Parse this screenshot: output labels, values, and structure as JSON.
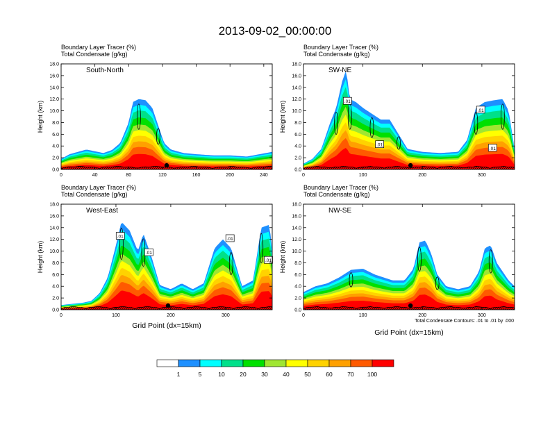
{
  "title": "2013-09-02_00:00:00",
  "panel_subtitle_1": "Boundary Layer Tracer   (%)",
  "panel_subtitle_2": "Total Condensate   (g/kg)",
  "x_axis_label": "Grid Point (dx=15km)",
  "contour_note": "Total Condensate Contours: .01 to .01 by .000",
  "palette": [
    "#ffffff",
    "#1e90ff",
    "#00ffff",
    "#00e08a",
    "#00e000",
    "#a0e632",
    "#ffff00",
    "#ffd200",
    "#ffa000",
    "#ff5a00",
    "#ff0000"
  ],
  "colorbar": {
    "labels": [
      "1",
      "5",
      "10",
      "20",
      "30",
      "40",
      "50",
      "60",
      "70",
      "100"
    ]
  },
  "chart_data": [
    {
      "type": "heatmap",
      "name": "South-North",
      "ylabel": "Height (km)",
      "xlabel": "",
      "ylim": [
        0,
        18
      ],
      "yticks": [
        "0.0",
        "2.0",
        "4.0",
        "6.0",
        "8.0",
        "10.0",
        "12.0",
        "14.0",
        "16.0",
        "18.0"
      ],
      "xlim": [
        0,
        250
      ],
      "xticks": [
        0,
        40,
        80,
        120,
        160,
        200,
        240
      ],
      "marker_x": 125,
      "profile": [
        [
          0,
          1.8
        ],
        [
          10,
          2.6
        ],
        [
          20,
          3.0
        ],
        [
          30,
          3.4
        ],
        [
          40,
          3.1
        ],
        [
          50,
          2.8
        ],
        [
          60,
          3.3
        ],
        [
          70,
          4.5
        ],
        [
          80,
          8.0
        ],
        [
          85,
          11.5
        ],
        [
          92,
          12.0
        ],
        [
          100,
          11.8
        ],
        [
          108,
          10.5
        ],
        [
          115,
          7.5
        ],
        [
          122,
          4.5
        ],
        [
          130,
          3.4
        ],
        [
          145,
          2.8
        ],
        [
          160,
          2.6
        ],
        [
          180,
          2.4
        ],
        [
          200,
          2.4
        ],
        [
          220,
          2.2
        ],
        [
          235,
          2.6
        ],
        [
          250,
          3.0
        ]
      ],
      "box_labels": []
    },
    {
      "type": "heatmap",
      "name": "SW-NE",
      "ylabel": "Height (km)",
      "xlabel": "",
      "ylim": [
        0,
        18
      ],
      "yticks": [
        "0.0",
        "2.0",
        "4.0",
        "6.0",
        "8.0",
        "10.0",
        "12.0",
        "14.0",
        "16.0",
        "18.0"
      ],
      "xlim": [
        0,
        355
      ],
      "xticks": [
        0,
        100,
        200,
        300
      ],
      "marker_x": 180,
      "profile": [
        [
          0,
          1.0
        ],
        [
          15,
          1.8
        ],
        [
          30,
          3.5
        ],
        [
          45,
          8.0
        ],
        [
          55,
          10.5
        ],
        [
          65,
          15.0
        ],
        [
          72,
          17.0
        ],
        [
          78,
          12.0
        ],
        [
          88,
          11.5
        ],
        [
          100,
          10.5
        ],
        [
          115,
          9.5
        ],
        [
          130,
          8.5
        ],
        [
          145,
          8.5
        ],
        [
          160,
          6.0
        ],
        [
          175,
          3.5
        ],
        [
          200,
          3.0
        ],
        [
          230,
          2.8
        ],
        [
          260,
          3.0
        ],
        [
          275,
          5.0
        ],
        [
          290,
          10.5
        ],
        [
          305,
          11.5
        ],
        [
          320,
          11.8
        ],
        [
          335,
          12.0
        ],
        [
          345,
          10.0
        ],
        [
          355,
          3.5
        ]
      ],
      "box_labels": [
        {
          "text": ".01",
          "x": 74,
          "y": 11.7
        },
        {
          "text": ".01",
          "x": 128,
          "y": 4.3
        },
        {
          "text": ".01",
          "x": 298,
          "y": 10.2
        },
        {
          "text": ".01",
          "x": 318,
          "y": 3.7
        }
      ]
    },
    {
      "type": "heatmap",
      "name": "West-East",
      "ylabel": "Height (km)",
      "xlabel": "Grid Point (dx=15km)",
      "ylim": [
        0,
        18
      ],
      "yticks": [
        "0.0",
        "2.0",
        "4.0",
        "6.0",
        "8.0",
        "10.0",
        "12.0",
        "14.0",
        "16.0",
        "18.0"
      ],
      "xlim": [
        0,
        385
      ],
      "xticks": [
        0,
        100,
        200,
        300
      ],
      "marker_x": 195,
      "profile": [
        [
          0,
          0.8
        ],
        [
          20,
          1.0
        ],
        [
          40,
          1.2
        ],
        [
          55,
          1.5
        ],
        [
          70,
          2.8
        ],
        [
          85,
          5.5
        ],
        [
          100,
          11.0
        ],
        [
          110,
          15.0
        ],
        [
          125,
          13.5
        ],
        [
          140,
          10.0
        ],
        [
          150,
          13.0
        ],
        [
          165,
          9.0
        ],
        [
          180,
          4.2
        ],
        [
          200,
          3.5
        ],
        [
          220,
          4.5
        ],
        [
          240,
          3.5
        ],
        [
          260,
          4.5
        ],
        [
          280,
          10.5
        ],
        [
          295,
          12.0
        ],
        [
          310,
          10.5
        ],
        [
          330,
          4.0
        ],
        [
          350,
          5.0
        ],
        [
          365,
          14.0
        ],
        [
          380,
          14.5
        ],
        [
          385,
          10.0
        ]
      ],
      "box_labels": [
        {
          "text": ".01",
          "x": 108,
          "y": 12.6
        },
        {
          "text": ".01",
          "x": 160,
          "y": 9.8
        },
        {
          "text": ".01",
          "x": 308,
          "y": 12.2
        },
        {
          "text": ".01",
          "x": 378,
          "y": 8.5
        }
      ]
    },
    {
      "type": "heatmap",
      "name": "NW-SE",
      "ylabel": "Height (km)",
      "xlabel": "Grid Point (dx=15km)",
      "ylim": [
        0,
        18
      ],
      "yticks": [
        "0.0",
        "2.0",
        "4.0",
        "6.0",
        "8.0",
        "10.0",
        "12.0",
        "14.0",
        "16.0",
        "18.0"
      ],
      "xlim": [
        0,
        355
      ],
      "xticks": [
        0,
        100,
        200,
        300
      ],
      "marker_x": 180,
      "profile": [
        [
          0,
          3.0
        ],
        [
          20,
          4.0
        ],
        [
          40,
          4.5
        ],
        [
          60,
          5.5
        ],
        [
          80,
          6.8
        ],
        [
          100,
          7.0
        ],
        [
          120,
          6.0
        ],
        [
          150,
          5.0
        ],
        [
          170,
          5.0
        ],
        [
          185,
          7.0
        ],
        [
          195,
          11.5
        ],
        [
          205,
          11.8
        ],
        [
          215,
          9.5
        ],
        [
          225,
          6.0
        ],
        [
          240,
          4.0
        ],
        [
          260,
          3.5
        ],
        [
          280,
          4.0
        ],
        [
          295,
          6.5
        ],
        [
          305,
          10.5
        ],
        [
          315,
          11.0
        ],
        [
          325,
          8.0
        ],
        [
          335,
          6.5
        ],
        [
          345,
          5.0
        ],
        [
          355,
          4.0
        ]
      ],
      "box_labels": []
    }
  ]
}
